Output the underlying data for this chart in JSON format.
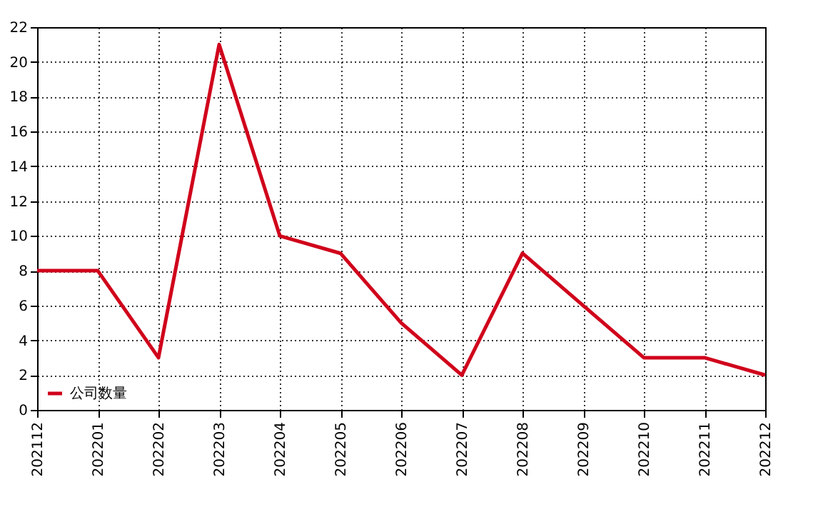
{
  "chart_data": {
    "type": "line",
    "categories": [
      "202112",
      "202201",
      "202202",
      "202203",
      "202204",
      "202205",
      "202206",
      "202207",
      "202208",
      "202209",
      "202210",
      "202211",
      "202212"
    ],
    "series": [
      {
        "name": "公司数量",
        "color": "#d0021b",
        "values": [
          8,
          8,
          3,
          21,
          10,
          9,
          5,
          2,
          9,
          6,
          3,
          3,
          2
        ]
      }
    ],
    "ylim": [
      0,
      22
    ],
    "yticks": [
      0,
      2,
      4,
      6,
      8,
      10,
      12,
      14,
      16,
      18,
      20,
      22
    ],
    "grid": true,
    "legend": "bottom left",
    "marker": "none",
    "line_style": "solid"
  }
}
